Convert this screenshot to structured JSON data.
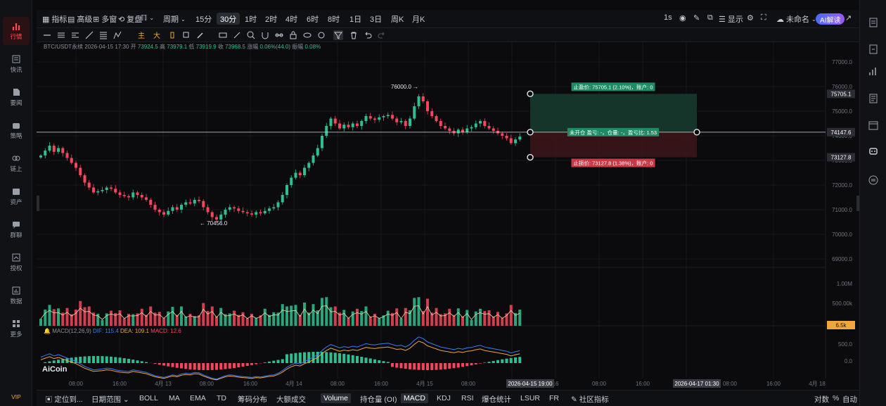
{
  "sidebar": {
    "items": [
      {
        "label": "行情",
        "icon": "chart-icon",
        "active": true
      },
      {
        "label": "快讯",
        "icon": "news-icon"
      },
      {
        "label": "要闻",
        "icon": "article-icon"
      },
      {
        "label": "策略",
        "icon": "robot-icon"
      },
      {
        "label": "链上",
        "icon": "chain-icon"
      },
      {
        "label": "资产",
        "icon": "wallet-icon"
      },
      {
        "label": "群聊",
        "icon": "chat-icon"
      },
      {
        "label": "授权",
        "icon": "key-icon"
      },
      {
        "label": "数据",
        "icon": "data-icon"
      },
      {
        "label": "更多",
        "icon": "grid-icon"
      }
    ],
    "vip": "VIP"
  },
  "toolbar": {
    "indicators": "指标",
    "advanced": "高级",
    "multi_window": "多窗",
    "replay": "复盘",
    "period": "周期",
    "intervals": [
      "15分",
      "30分",
      "1时",
      "2时",
      "4时",
      "6时",
      "8时",
      "1日",
      "3日",
      "周K",
      "月K"
    ],
    "selected_interval": "30分",
    "realtime": "1s",
    "display": "显示",
    "layout_name": "未命名",
    "ai_button": "AI解读"
  },
  "drawing_tools": {
    "color_labels": [
      "主",
      "大"
    ]
  },
  "chart_info": {
    "symbol": "BTC/USDT永续",
    "datetime": "2026-04-15 17:30",
    "open_label": "开",
    "open": "73924.5",
    "high_label": "高",
    "high": "73979.1",
    "low_label": "低",
    "low": "73919.9",
    "close_label": "收",
    "close": "73968.5",
    "change_label": "涨幅",
    "change": "0.06%(44.0)",
    "amp_label": "振幅",
    "amp": "0.08%"
  },
  "macd_info": {
    "label": "MACD(12,26,9)",
    "dif": "DIF: 115.4",
    "dea": "DEA: 109.1",
    "macd": "MACD: 12.6"
  },
  "chart_data": {
    "type": "candlestick",
    "title": "",
    "price_axis": [
      "77000.0",
      "76000.0",
      "75000.0",
      "74000.0",
      "73000.0",
      "72000.0",
      "71000.0",
      "70000.0",
      "69000.0"
    ],
    "volume_axis": [
      "1.00M",
      "500.00k"
    ],
    "macd_axis": [
      "500.0",
      "0.0"
    ],
    "time_axis": [
      "08:00",
      "16:00",
      "4月 13",
      "08:00",
      "16:00",
      "4月 14",
      "08:00",
      "16:00",
      "4月 15",
      "08:00",
      "16",
      "08:00",
      "16:00",
      "08:00",
      "16:00",
      "4月 18"
    ],
    "crosshair_time_left": "2026-04-15 19:00",
    "crosshair_time_right": "2026-04-17 01:30",
    "high_marker": "76000.0",
    "low_marker": "70456.0",
    "current_price_tag": "74147.6",
    "take_profit_tag": "75705.1",
    "stop_loss_tag": "73127.8",
    "volume_tag": "6.5k",
    "position_tool": {
      "take_profit_text": "止盈价: 75705.1 (2.10%)，账户: 0",
      "entry_text": "未开仓 盈亏: -，仓量: -，盈亏比: 1.53",
      "stop_loss_text": "止损价: 73127.8 (1.38%)，账户: 0"
    },
    "candles_close": [
      73200,
      73400,
      73600,
      73350,
      73500,
      73300,
      73100,
      72900,
      72700,
      72400,
      72100,
      71900,
      71700,
      71750,
      71800,
      71900,
      71850,
      71700,
      71600,
      71550,
      71500,
      71700,
      71600,
      71500,
      71400,
      71200,
      71000,
      70900,
      70800,
      70950,
      71100,
      71000,
      71200,
      71300,
      71250,
      71400,
      71350,
      71100,
      70900,
      70700,
      70600,
      70800,
      71000,
      71100,
      71050,
      70950,
      70900,
      70850,
      70800,
      70900,
      70850,
      70950,
      71050,
      71100,
      71300,
      71600,
      72000,
      72300,
      72500,
      72400,
      72700,
      72900,
      73200,
      73500,
      74000,
      74400,
      74700,
      74500,
      74300,
      74450,
      74350,
      74500,
      74400,
      74600,
      74800,
      74700,
      74650,
      74750,
      74800,
      74850,
      74700,
      74550,
      74600,
      74400,
      74700,
      75200,
      75600,
      75400,
      75000,
      74800,
      74600,
      74400,
      74300,
      74200,
      74100,
      74250,
      74150,
      74300,
      74350,
      74500,
      74600,
      74400,
      74300,
      74200,
      74100,
      74000,
      73900,
      73700,
      73850,
      73968
    ]
  },
  "bottombar": {
    "position_tool": "定位到...",
    "date_range": "日期范围",
    "indicators": [
      "BOLL",
      "MA",
      "EMA",
      "TD",
      "筹码分布",
      "大额成交",
      "Volume",
      "持仓量 (OI)",
      "MACD",
      "KDJ",
      "RSI",
      "爆仓统计",
      "LSUR",
      "FR"
    ],
    "selected": [
      "Volume",
      "MACD"
    ],
    "community": "社区指标",
    "log": "对数",
    "percent": "%",
    "auto": "自动"
  },
  "colors": {
    "up": "#2fbf8f",
    "down": "#f6465d",
    "accent": "#ff4d4f"
  }
}
